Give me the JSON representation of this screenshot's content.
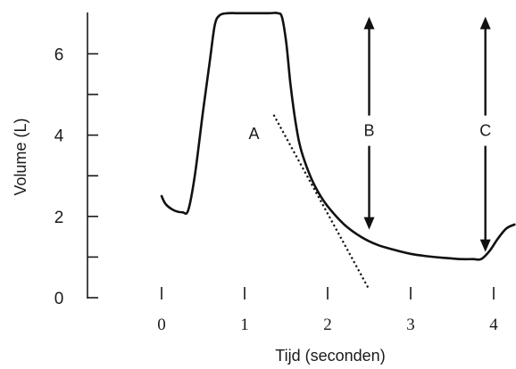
{
  "chart_data": {
    "type": "line",
    "xlabel": "Tijd (seconden)",
    "ylabel": "Volume (L)",
    "xlim": [
      0,
      4
    ],
    "ylim": [
      0,
      7
    ],
    "x_ticks": [
      0,
      1,
      2,
      3,
      4
    ],
    "y_ticks": [
      0,
      1,
      2,
      3,
      4,
      5,
      6
    ],
    "y_tick_labels": [
      "0",
      "",
      "2",
      "",
      "4",
      "",
      "6"
    ],
    "grid": false,
    "series": [
      {
        "x": [
          0.0,
          0.05,
          0.15,
          0.25,
          0.32,
          0.4,
          0.5,
          0.58,
          0.64,
          0.7,
          0.8,
          0.9,
          1.0,
          1.1,
          1.2,
          1.3,
          1.4,
          1.45,
          1.5,
          1.55,
          1.6,
          1.65,
          1.7,
          1.8,
          1.9,
          2.0,
          2.2,
          2.4,
          2.6,
          2.8,
          3.0,
          3.2,
          3.4,
          3.6,
          3.75,
          3.85,
          3.95,
          4.05,
          4.15,
          4.25
        ],
        "y": [
          2.5,
          2.3,
          2.15,
          2.1,
          2.15,
          3.0,
          4.6,
          5.8,
          6.7,
          6.95,
          7.0,
          7.0,
          7.0,
          7.0,
          7.0,
          7.0,
          7.0,
          6.9,
          6.3,
          5.3,
          4.5,
          3.9,
          3.5,
          2.95,
          2.55,
          2.25,
          1.8,
          1.5,
          1.3,
          1.18,
          1.08,
          1.02,
          0.98,
          0.95,
          0.95,
          0.95,
          1.15,
          1.45,
          1.7,
          1.8
        ]
      }
    ],
    "annotations": [
      {
        "label": "A",
        "type": "tangent-line",
        "x": [
          1.35,
          2.5
        ],
        "y": [
          4.5,
          0.2
        ]
      },
      {
        "label": "B",
        "type": "double-arrow",
        "x": 2.5,
        "y": [
          7.0,
          1.5
        ]
      },
      {
        "label": "C",
        "type": "double-arrow",
        "x": 3.9,
        "y": [
          7.0,
          0.95
        ]
      }
    ]
  }
}
